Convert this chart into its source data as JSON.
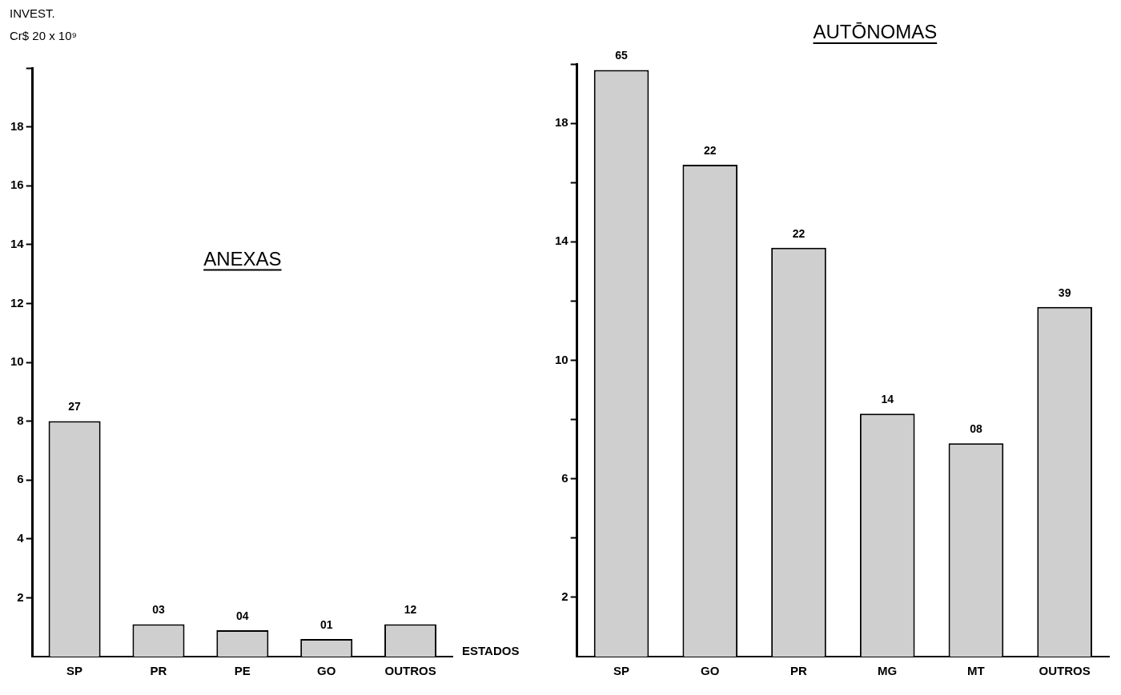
{
  "chart_data": [
    {
      "type": "bar",
      "title": "ANEXAS",
      "ylabel": "INVEST.",
      "xlabel": "ESTADOS",
      "categories": [
        "SP",
        "PR",
        "PE",
        "GO",
        "OUTROS"
      ],
      "values": [
        8.0,
        1.1,
        0.9,
        0.6,
        1.1
      ],
      "color": "#cfcfcf",
      "ylim": [
        0,
        20
      ],
      "yticks": [
        2,
        4,
        6,
        8,
        10,
        12,
        14,
        16,
        18,
        {
          "value": 20,
          "label": null
        }
      ],
      "grid": false,
      "annotations": [
        "Cr$ 20 x 10⁹",
        {
          "text": "27",
          "x": "SP",
          "y": 8.0
        },
        {
          "text": "03",
          "x": "PR",
          "y": 1.1
        },
        {
          "text": "04",
          "x": "PE",
          "y": 0.9
        },
        {
          "text": "01",
          "x": "GO",
          "y": 0.6
        },
        {
          "text": "12",
          "x": "OUTROS",
          "y": 1.1
        }
      ]
    },
    {
      "type": "bar",
      "title": "AUTŌNOMAS",
      "categories": [
        "SP",
        "GO",
        "PR",
        "MG",
        "MT",
        "OUTROS"
      ],
      "values": [
        19.8,
        16.6,
        13.8,
        8.2,
        7.2,
        11.8
      ],
      "color": "#cfcfcf",
      "ylim": [
        0,
        20
      ],
      "yticks": [
        2,
        {
          "value": 4,
          "label": null
        },
        6,
        {
          "value": 8,
          "label": null
        },
        10,
        {
          "value": 12,
          "label": null
        },
        14,
        {
          "value": 16,
          "label": null
        },
        18,
        {
          "value": 20,
          "label": null
        }
      ],
      "grid": false,
      "annotations": [
        {
          "text": "65",
          "x": "SP",
          "y": 19.8
        },
        {
          "text": "22",
          "x": "GO",
          "y": 16.6
        },
        {
          "text": "22",
          "x": "PR",
          "y": 13.8
        },
        {
          "text": "14",
          "x": "MG",
          "y": 8.2
        },
        {
          "text": "08",
          "x": "MT",
          "y": 7.2
        },
        {
          "text": "39",
          "x": "OUTROS",
          "y": 11.8
        }
      ]
    }
  ]
}
